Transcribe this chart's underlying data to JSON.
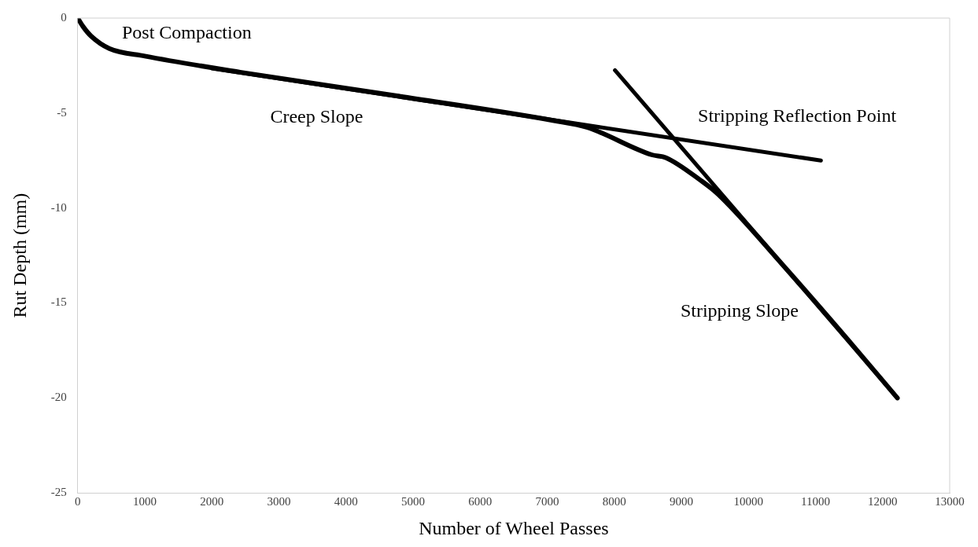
{
  "chart_data": {
    "type": "line",
    "xlabel": "Number of Wheel Passes",
    "ylabel": "Rut Depth (mm)",
    "xlim": [
      0,
      13000
    ],
    "xticks": [
      0,
      1000,
      2000,
      3000,
      4000,
      5000,
      6000,
      7000,
      8000,
      9000,
      10000,
      11000,
      12000,
      13000
    ],
    "ylim": [
      -25,
      0
    ],
    "yticks": [
      -25,
      -20,
      -15,
      -10,
      -5,
      0
    ],
    "grid": false,
    "legend": false,
    "marker": "none",
    "line_style": "solid",
    "series": [
      {
        "color": "#000000",
        "x": [
          0,
          80,
          200,
          470,
          1000,
          2420,
          4760,
          7100,
          7590,
          8560,
          8770,
          9290,
          9540,
          10500,
          11500,
          12220
        ],
        "values": [
          0,
          -0.45,
          -0.95,
          -1.6,
          -2.0,
          -2.85,
          -4.1,
          -5.4,
          -5.75,
          -7.2,
          -7.35,
          -8.55,
          -9.25,
          -12.95,
          -17.0,
          -20.0
        ]
      },
      {
        "color": "#000000",
        "x": [
          2000,
          11080
        ],
        "values": [
          -2.65,
          -7.5
        ]
      },
      {
        "color": "#000000",
        "x": [
          8010,
          12220
        ],
        "values": [
          -2.75,
          -20.0
        ]
      }
    ],
    "annotations": [
      "Post Compaction",
      "Creep Slope",
      "Stripping Reflection Point",
      "Stripping Slope"
    ]
  }
}
